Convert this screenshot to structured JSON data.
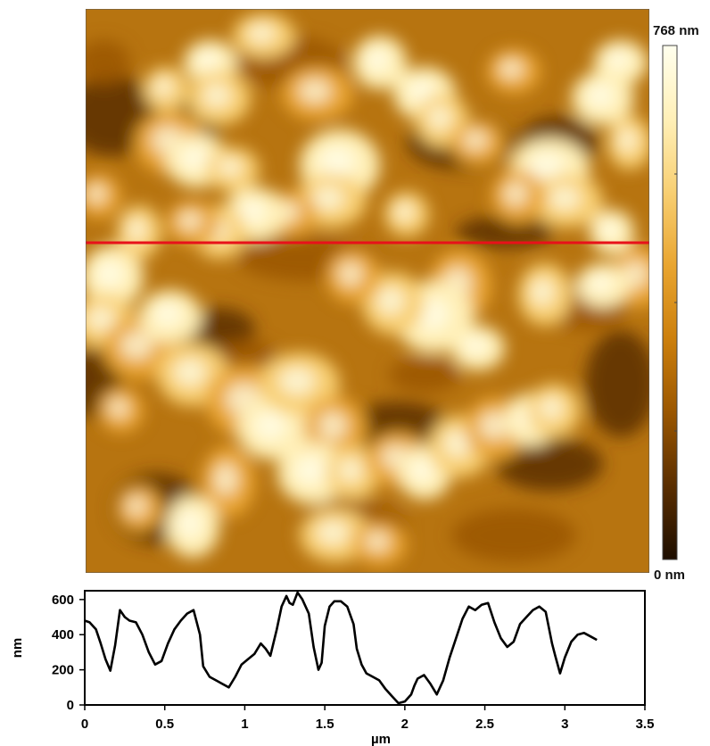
{
  "image": {
    "scan_line_color": "#e8111a",
    "palette": [
      "#1e0e00",
      "#5a2e00",
      "#9a5600",
      "#cc7f0c",
      "#e9a530",
      "#f8cf72",
      "#fff0b8",
      "#ffffee"
    ]
  },
  "colorbar": {
    "max_label": "768 nm",
    "min_label": "0 nm",
    "max_value": 768,
    "min_value": 0,
    "unit": "nm"
  },
  "chart_data": {
    "type": "line",
    "xlabel": "µm",
    "ylabel": "nm",
    "xlim": [
      0,
      3.5
    ],
    "ylim": [
      0,
      650
    ],
    "x_ticks": [
      0,
      0.5,
      1,
      1.5,
      2,
      2.5,
      3,
      3.5
    ],
    "x_tick_labels": [
      "0",
      "0.5",
      "1",
      "1.5",
      "2",
      "2.5",
      "3",
      "3.5"
    ],
    "y_ticks": [
      0,
      200,
      400,
      600
    ],
    "y_tick_labels": [
      "0",
      "200",
      "400",
      "600"
    ],
    "line_color": "#000000",
    "grid": false,
    "series": [
      {
        "x": [
          0,
          0.03,
          0.07,
          0.1,
          0.13,
          0.16,
          0.19,
          0.22,
          0.25,
          0.28,
          0.32,
          0.36,
          0.4,
          0.44,
          0.48,
          0.52,
          0.56,
          0.6,
          0.64,
          0.68,
          0.72,
          0.74,
          0.78,
          0.82,
          0.86,
          0.9,
          0.94,
          0.98,
          1.02,
          1.06,
          1.1,
          1.13,
          1.16,
          1.2,
          1.23,
          1.26,
          1.28,
          1.3,
          1.33,
          1.36,
          1.4,
          1.43,
          1.46,
          1.48,
          1.5,
          1.53,
          1.56,
          1.6,
          1.64,
          1.68,
          1.7,
          1.73,
          1.76,
          1.8,
          1.84,
          1.88,
          1.92,
          1.96,
          2,
          2.04,
          2.06,
          2.08,
          2.12,
          2.16,
          2.2,
          2.24,
          2.28,
          2.32,
          2.36,
          2.4,
          2.44,
          2.48,
          2.52,
          2.56,
          2.6,
          2.64,
          2.68,
          2.72,
          2.76,
          2.8,
          2.84,
          2.88,
          2.92,
          2.94,
          2.97,
          3,
          3.04,
          3.08,
          3.12,
          3.16,
          3.2
        ],
        "y": [
          480,
          470,
          430,
          350,
          260,
          195,
          340,
          540,
          500,
          480,
          470,
          400,
          300,
          230,
          250,
          350,
          430,
          480,
          520,
          540,
          400,
          220,
          160,
          140,
          120,
          100,
          160,
          230,
          260,
          290,
          350,
          320,
          280,
          430,
          560,
          620,
          580,
          570,
          640,
          600,
          520,
          330,
          200,
          240,
          450,
          560,
          590,
          590,
          560,
          460,
          320,
          230,
          180,
          160,
          140,
          90,
          50,
          10,
          20,
          60,
          110,
          150,
          170,
          120,
          60,
          140,
          270,
          380,
          490,
          560,
          540,
          570,
          580,
          470,
          380,
          330,
          360,
          460,
          500,
          540,
          560,
          530,
          350,
          280,
          180,
          270,
          360,
          400,
          410,
          390,
          370
        ]
      }
    ]
  }
}
